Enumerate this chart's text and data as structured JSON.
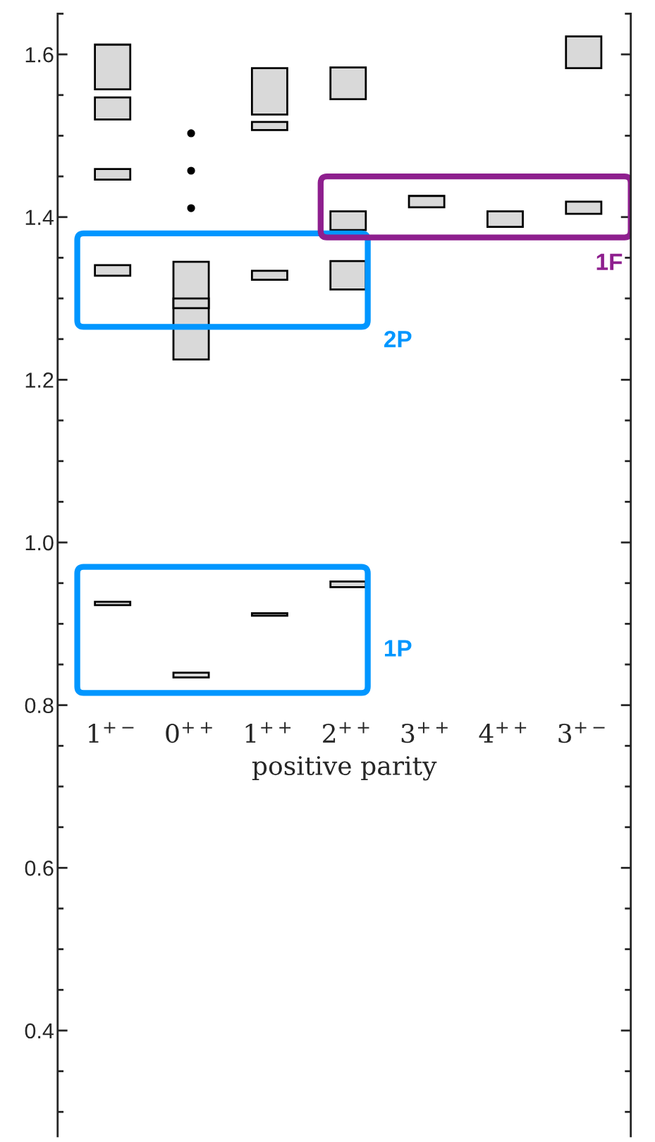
{
  "chart_data": {
    "type": "bar",
    "xlabel": "positive parity",
    "categories": [
      "1$^{+−}$",
      "0$^{++}$",
      "1$^{++}$",
      "2$^{++}$",
      "3$^{++}$",
      "4$^{++}$",
      "3$^{+−}$"
    ],
    "series": [
      {
        "color": "#d9d9d9",
        "base": [
          1.557,
          1.225,
          1.526,
          1.545,
          1.412,
          1.388,
          1.583
        ],
        "values": [
          0.055,
          0.12,
          0.057,
          0.039,
          0.014,
          0.019,
          0.039
        ]
      },
      {
        "color": "#d9d9d9",
        "base": [
          1.52,
          1.288,
          1.507,
          1.384,
          null,
          null,
          1.404
        ],
        "values": [
          0.027,
          0.012,
          0.01,
          0.023,
          null,
          null,
          0.015
        ]
      },
      {
        "color": "#d9d9d9",
        "base": [
          1.446,
          0.834,
          1.323,
          1.311,
          null,
          null,
          null
        ],
        "values": [
          0.013,
          0.006,
          0.011,
          0.035,
          null,
          null,
          null
        ]
      },
      {
        "color": "#d9d9d9",
        "base": [
          1.328,
          null,
          0.91,
          0.945,
          null,
          null,
          null
        ],
        "values": [
          0.013,
          null,
          0.003,
          0.007,
          null,
          null,
          null
        ]
      },
      {
        "color": "#d9d9d9",
        "base": [
          0.923,
          null,
          null,
          null,
          null,
          null,
          null
        ],
        "values": [
          0.004,
          null,
          null,
          null,
          null,
          null,
          null
        ]
      }
    ],
    "ylim": [
      0.27,
      1.65
    ],
    "yticks": [
      {
        "value": 0.3,
        "label": null
      },
      {
        "value": 0.35,
        "label": null
      },
      0.4,
      {
        "value": 0.45,
        "label": null
      },
      {
        "value": 0.5,
        "label": null
      },
      {
        "value": 0.55,
        "label": null
      },
      0.6,
      {
        "value": 0.65,
        "label": null
      },
      {
        "value": 0.7,
        "label": null
      },
      {
        "value": 0.75,
        "label": null
      },
      0.8,
      {
        "value": 0.85,
        "label": null
      },
      {
        "value": 0.9,
        "label": null
      },
      {
        "value": 0.95,
        "label": null
      },
      {
        "value": 1.0,
        "label": "1.0"
      },
      {
        "value": 1.05,
        "label": null
      },
      {
        "value": 1.1,
        "label": null
      },
      {
        "value": 1.15,
        "label": null
      },
      1.2,
      {
        "value": 1.25,
        "label": null
      },
      {
        "value": 1.3,
        "label": null
      },
      {
        "value": 1.35,
        "label": null
      },
      1.4,
      {
        "value": 1.45,
        "label": null
      },
      {
        "value": 1.5,
        "label": null
      },
      {
        "value": 1.55,
        "label": null
      },
      1.6,
      {
        "value": 1.65,
        "label": null
      }
    ],
    "annotations": [
      "1P",
      "2P",
      "1F"
    ],
    "grid": false,
    "legend": false
  }
}
